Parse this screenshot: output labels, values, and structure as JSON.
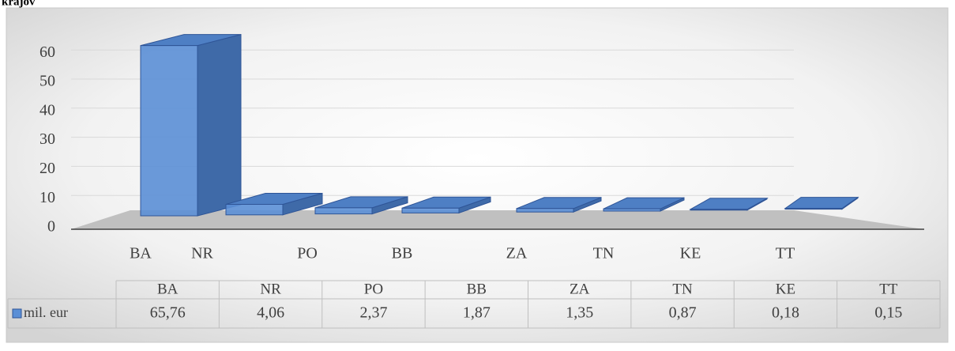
{
  "chart_data": {
    "type": "bar3d",
    "title": "krajov",
    "categories": [
      "BA",
      "NR",
      "PO",
      "BB",
      "ZA",
      "TN",
      "KE",
      "TT"
    ],
    "series": [
      {
        "name": "mil. eur",
        "color": "#5b8fd6",
        "values": [
          65.76,
          4.06,
          2.37,
          1.87,
          1.35,
          0.87,
          0.18,
          0.15
        ],
        "value_labels": [
          "65,76",
          "4,06",
          "2,37",
          "1,87",
          "1,35",
          "0,87",
          "0,18",
          "0,15"
        ]
      }
    ],
    "ylim": [
      0,
      70
    ],
    "yticks": [
      0,
      10,
      20,
      30,
      40,
      50,
      60
    ],
    "grid": true,
    "data_table": true
  }
}
